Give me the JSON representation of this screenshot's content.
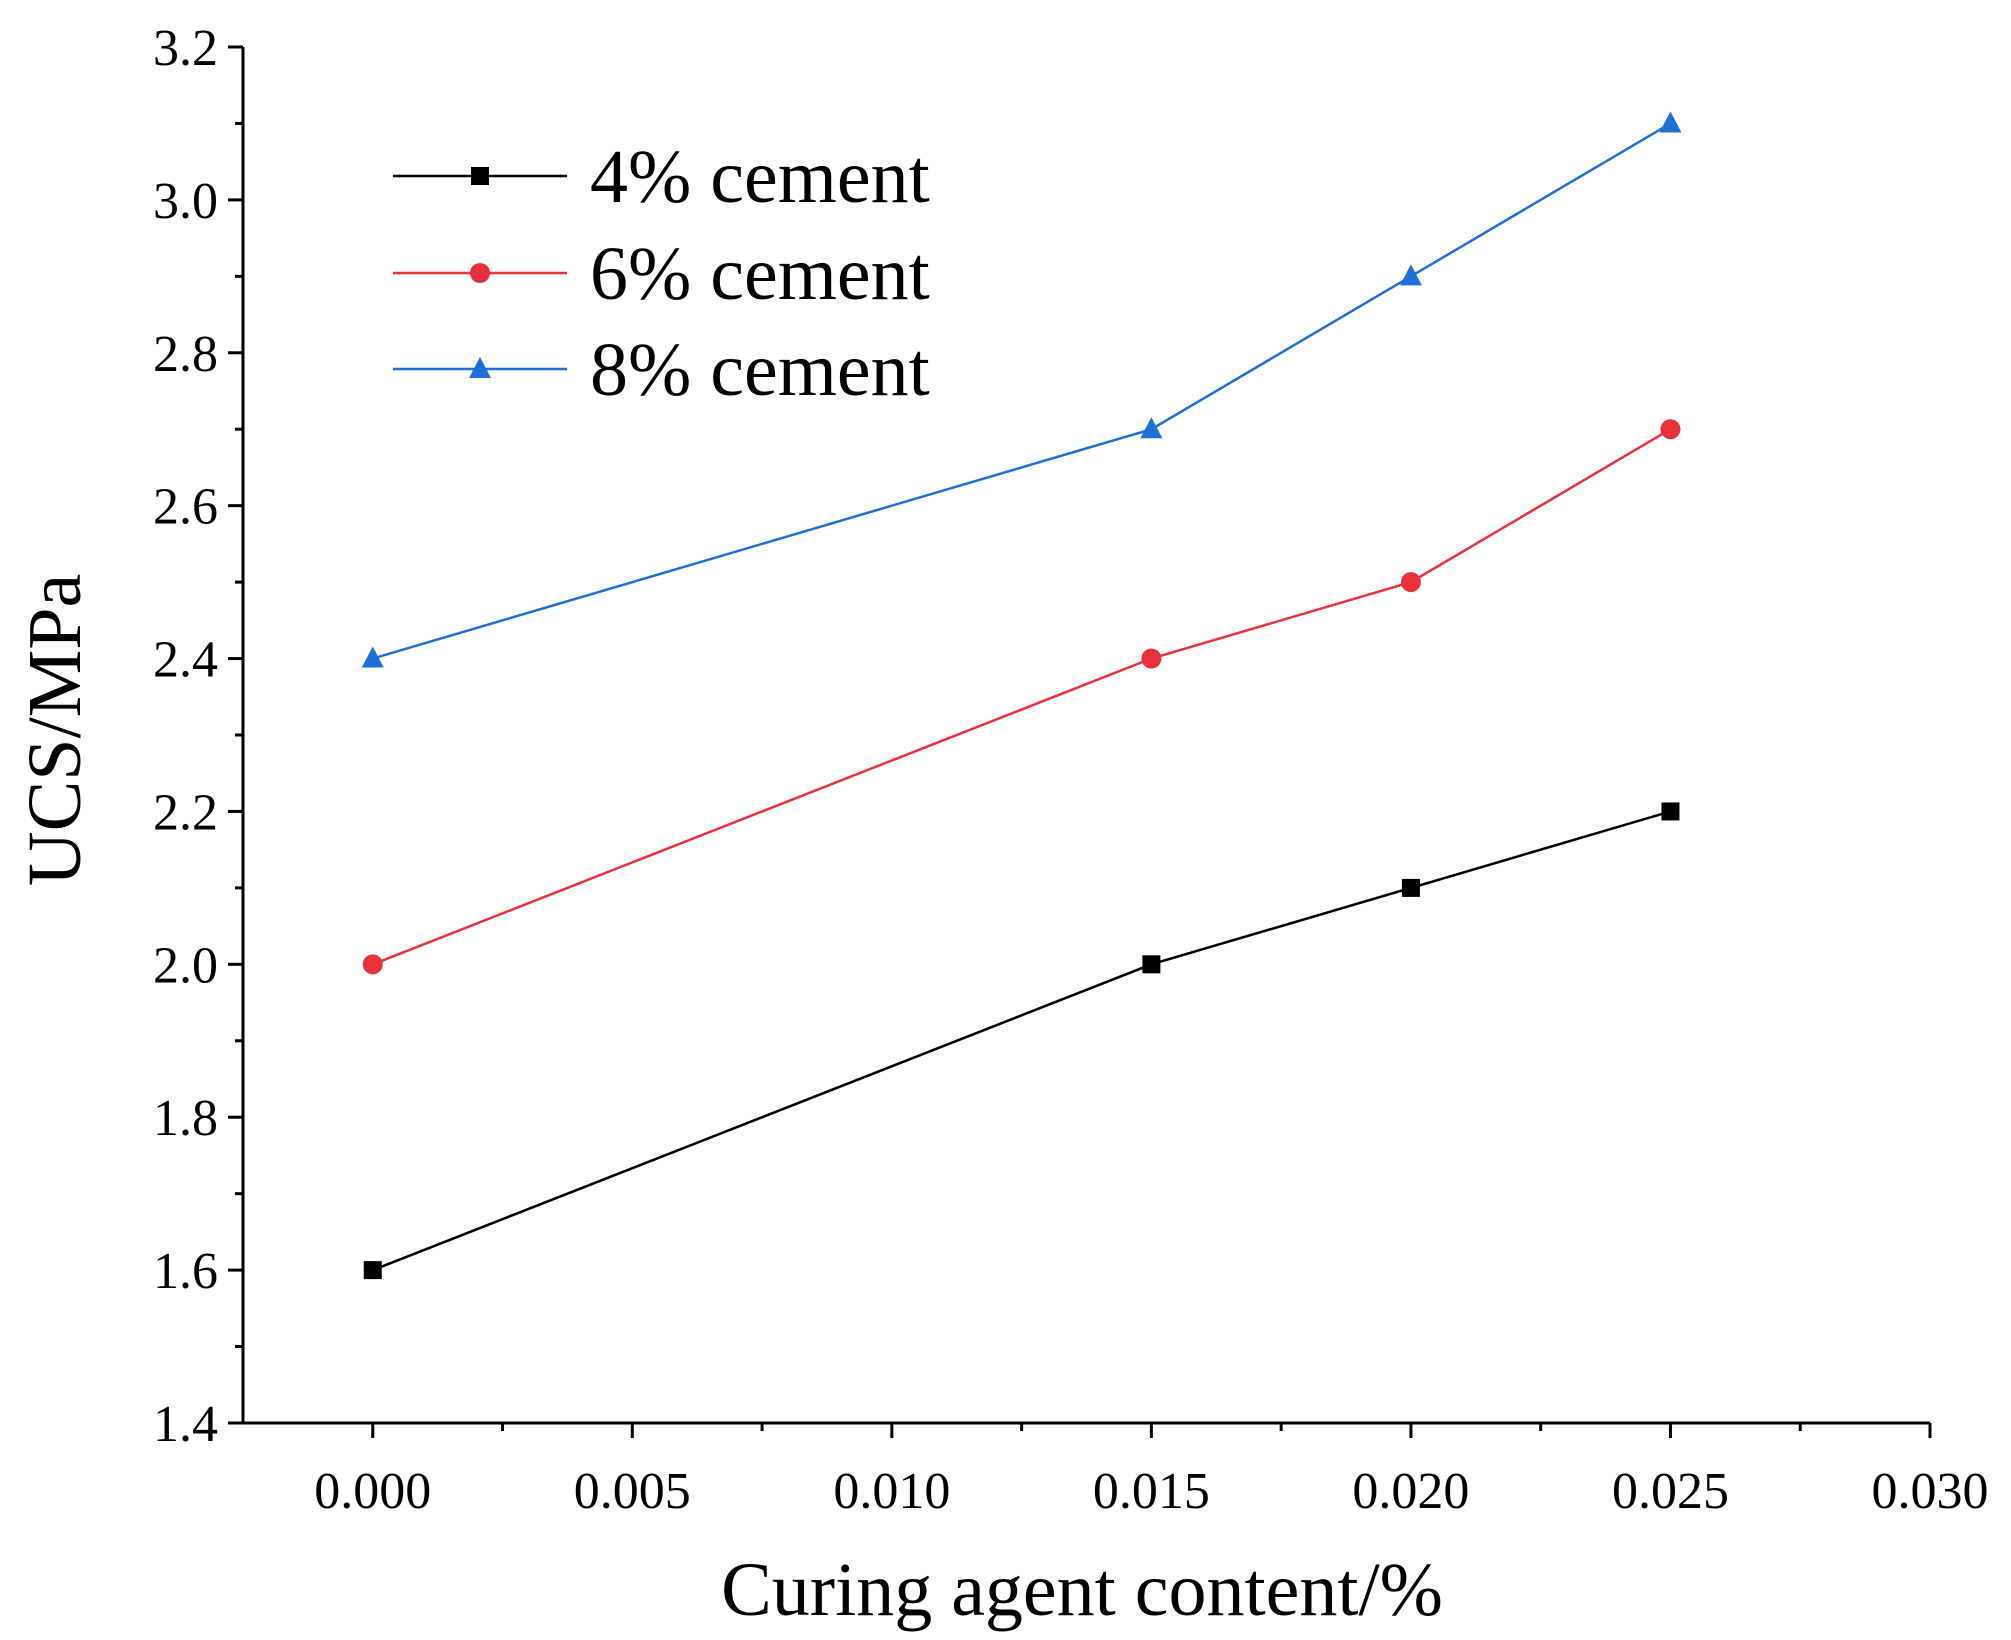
{
  "chart_data": {
    "type": "line",
    "title": "",
    "xlabel": "Curing agent content/%",
    "ylabel": "UCS/MPa",
    "xlim": [
      -0.0025,
      0.03
    ],
    "ylim": [
      1.4,
      3.2
    ],
    "x_ticks": [
      0.0,
      0.005,
      0.01,
      0.015,
      0.02,
      0.025,
      0.03
    ],
    "x_tick_labels": [
      "0.000",
      "0.005",
      "0.010",
      "0.015",
      "0.020",
      "0.025",
      "0.030"
    ],
    "y_ticks": [
      1.4,
      1.6,
      1.8,
      2.0,
      2.2,
      2.4,
      2.6,
      2.8,
      3.0,
      3.2
    ],
    "y_tick_labels": [
      "1.4",
      "1.6",
      "1.8",
      "2.0",
      "2.2",
      "2.4",
      "2.6",
      "2.8",
      "3.0",
      "3.2"
    ],
    "grid": false,
    "legend_position": "top-left",
    "x": [
      0.0,
      0.015,
      0.02,
      0.025
    ],
    "series": [
      {
        "name": "4% cement",
        "marker": "square",
        "color": "#000000",
        "values": [
          1.6,
          2.0,
          2.1,
          2.2
        ]
      },
      {
        "name": "6% cement",
        "marker": "circle",
        "color": "#e8313a",
        "values": [
          2.0,
          2.4,
          2.5,
          2.7
        ]
      },
      {
        "name": "8% cement",
        "marker": "triangle",
        "color": "#1f6fd6",
        "values": [
          2.4,
          2.7,
          2.9,
          3.1
        ]
      }
    ]
  }
}
